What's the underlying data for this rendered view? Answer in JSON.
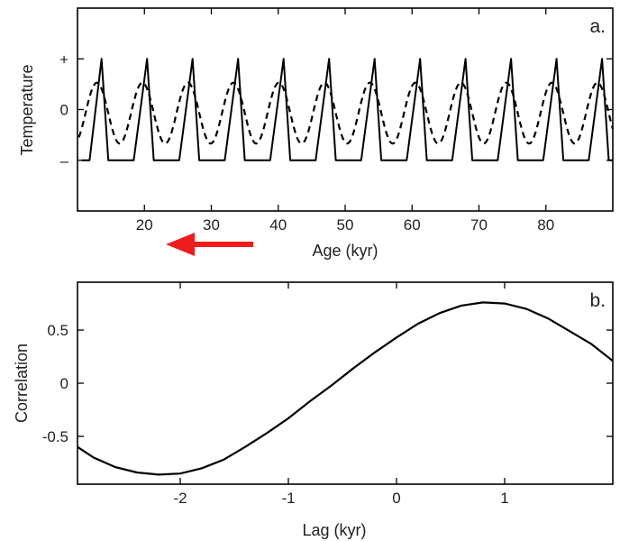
{
  "chart_data": [
    {
      "panel": "a.",
      "type": "line",
      "xlabel": "Age (kyr)",
      "ylabel": "Temperature",
      "xlim": [
        10,
        90
      ],
      "ylim": [
        -2,
        2
      ],
      "xticks": [
        20,
        30,
        40,
        50,
        60,
        70,
        80
      ],
      "yticks": [
        {
          "value": 1,
          "label": "+"
        },
        {
          "value": 0,
          "label": "0"
        },
        {
          "value": -1,
          "label": "–"
        }
      ],
      "series": [
        {
          "style": "solid",
          "x": [
            10.6,
            11.8,
            13.6,
            14.6,
            16.8,
            18.4,
            20.4,
            21.4,
            23.6,
            25.2,
            27.2,
            28.2,
            30.4,
            32.0,
            34.0,
            35.0,
            37.2,
            38.8,
            40.8,
            41.8,
            44.0,
            45.6,
            47.6,
            48.6,
            50.8,
            52.4,
            54.4,
            55.4,
            57.6,
            59.2,
            61.2,
            62.2,
            64.4,
            66.0,
            68.0,
            69.0,
            71.2,
            72.8,
            74.8,
            75.8,
            78.0,
            79.6,
            81.6,
            82.6,
            84.8,
            86.4,
            88.4,
            89.4,
            90
          ],
          "y": [
            -1,
            -1,
            1,
            -1,
            -1,
            -1,
            1,
            -1,
            -1,
            -1,
            1,
            -1,
            -1,
            -1,
            1,
            -1,
            -1,
            -1,
            1,
            -1,
            -1,
            -1,
            1,
            -1,
            -1,
            -1,
            1,
            -1,
            -1,
            -1,
            1,
            -1,
            -1,
            -1,
            1,
            -1,
            -1,
            -1,
            1,
            -1,
            -1,
            -1,
            1,
            -1,
            -1,
            -1,
            1,
            -1,
            -1
          ]
        },
        {
          "style": "dashed",
          "period": 6.8,
          "phase_center": 12.9,
          "amplitude": 0.6,
          "offset": -0.07,
          "xrange": [
            10.2,
            90
          ]
        }
      ]
    },
    {
      "panel": "b.",
      "type": "line",
      "xlabel": "Lag (kyr)",
      "ylabel": "Correlation",
      "xlim": [
        -2.95,
        2.0
      ],
      "ylim": [
        -0.95,
        0.95
      ],
      "xticks": [
        -2,
        -1,
        0,
        1
      ],
      "yticks": [
        0.5,
        0,
        -0.5
      ],
      "series": [
        {
          "style": "solid",
          "x": [
            -2.95,
            -2.8,
            -2.6,
            -2.4,
            -2.2,
            -2.0,
            -1.8,
            -1.6,
            -1.4,
            -1.2,
            -1.0,
            -0.8,
            -0.6,
            -0.4,
            -0.2,
            0.0,
            0.2,
            0.4,
            0.6,
            0.8,
            1.0,
            1.2,
            1.4,
            1.6,
            1.8,
            2.0
          ],
          "y": [
            -0.6,
            -0.7,
            -0.79,
            -0.84,
            -0.86,
            -0.85,
            -0.8,
            -0.72,
            -0.6,
            -0.47,
            -0.33,
            -0.17,
            -0.02,
            0.14,
            0.29,
            0.43,
            0.56,
            0.66,
            0.73,
            0.76,
            0.75,
            0.7,
            0.61,
            0.49,
            0.37,
            0.21
          ]
        }
      ]
    }
  ],
  "arrow_color": "#ee1c1c"
}
